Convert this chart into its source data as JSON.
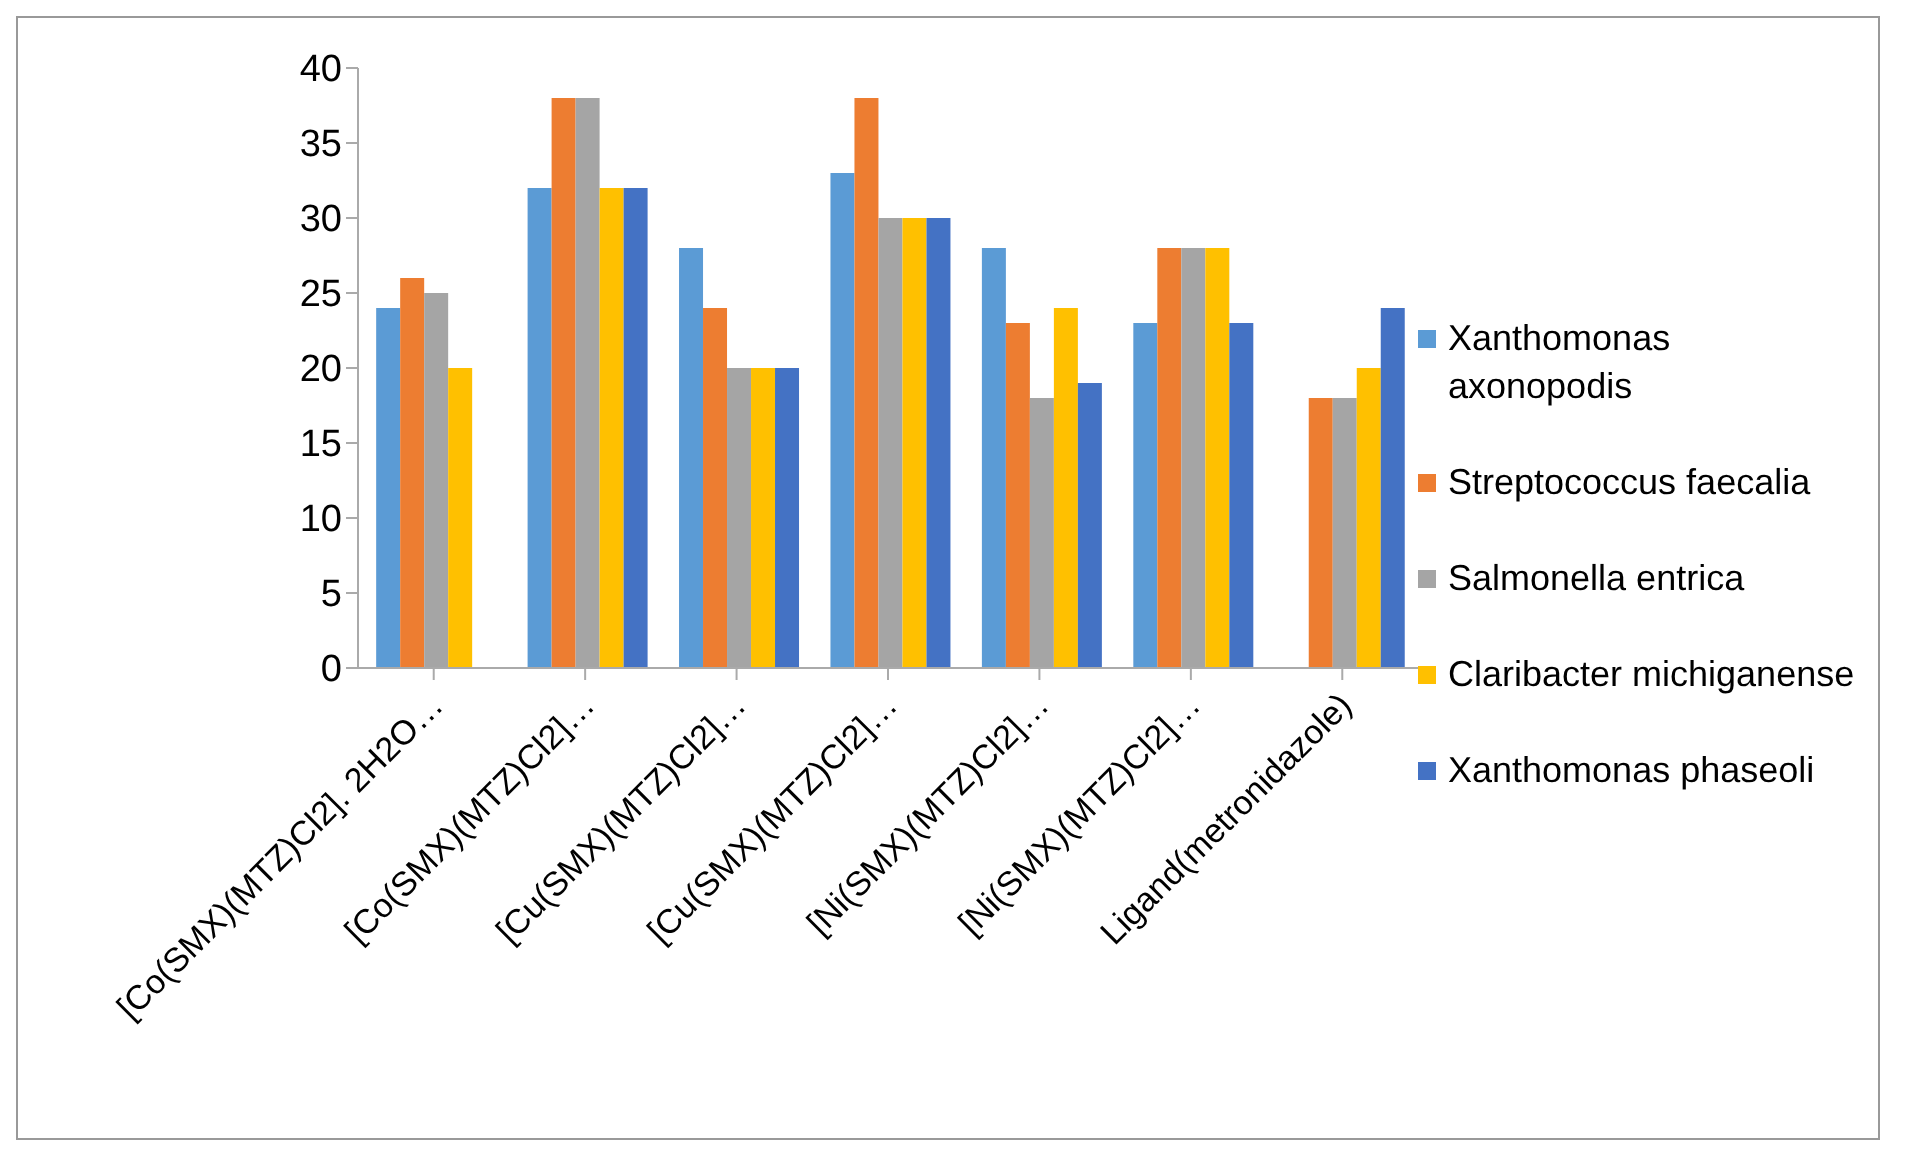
{
  "chart_data": {
    "type": "bar",
    "categories": [
      "[Co(SMX)(MTZ)Cl2]. 2H2O…",
      "[Co(SMX)(MTZ)Cl2]…",
      "[Cu(SMX)(MTZ)Cl2]…",
      "[Cu(SMX)(MTZ)Cl2]…",
      "[Ni(SMX)(MTZ)Cl2]…",
      "[Ni(SMX)(MTZ)Cl2]…",
      "Ligand(metronidazole)"
    ],
    "series": [
      {
        "name": "Xanthomonas axonopodis",
        "color": "#5b9bd5",
        "values": [
          24,
          32,
          28,
          33,
          28,
          23,
          0
        ]
      },
      {
        "name": "Streptococcus faecalia",
        "color": "#ed7d31",
        "values": [
          26,
          38,
          24,
          38,
          23,
          28,
          18
        ]
      },
      {
        "name": "Salmonella entrica",
        "color": "#a5a5a5",
        "values": [
          25,
          38,
          20,
          30,
          18,
          28,
          18
        ]
      },
      {
        "name": "Claribacter michiganense",
        "color": "#ffc000",
        "values": [
          20,
          32,
          20,
          30,
          24,
          28,
          20
        ]
      },
      {
        "name": "Xanthomonas phaseoli",
        "color": "#4472c4",
        "values": [
          null,
          32,
          20,
          30,
          19,
          23,
          24
        ]
      }
    ],
    "ylim": [
      0,
      40
    ],
    "yticks": [
      0,
      5,
      10,
      15,
      20,
      25,
      30,
      35,
      40
    ],
    "grid": false,
    "legend": "right"
  }
}
